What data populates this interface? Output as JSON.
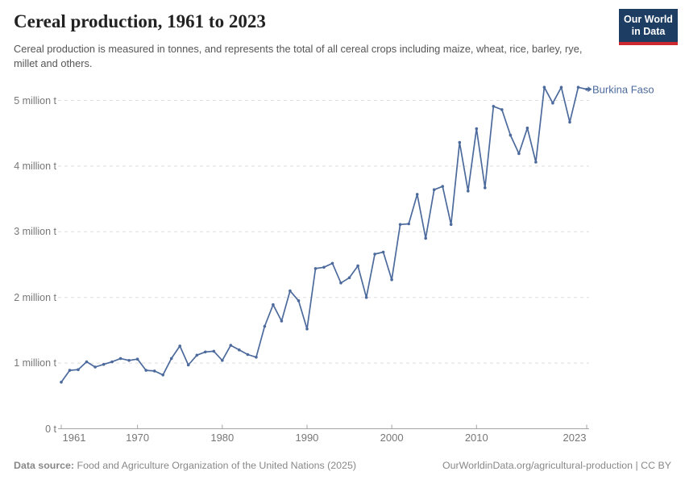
{
  "header": {
    "title": "Cereal production, 1961 to 2023",
    "subtitle": "Cereal production is measured in tonnes, and represents the total of all cereal crops including maize, wheat, rice, barley, rye, millet and others.",
    "logo_line1": "Our World",
    "logo_line2": "in Data"
  },
  "chart_data": {
    "type": "line",
    "title": "Cereal production, 1961 to 2023",
    "entity_label": "Burkina Faso",
    "unit": "million tonnes",
    "x": [
      1961,
      1962,
      1963,
      1964,
      1965,
      1966,
      1967,
      1968,
      1969,
      1970,
      1971,
      1972,
      1973,
      1974,
      1975,
      1976,
      1977,
      1978,
      1979,
      1980,
      1981,
      1982,
      1983,
      1984,
      1985,
      1986,
      1987,
      1988,
      1989,
      1990,
      1991,
      1992,
      1993,
      1994,
      1995,
      1996,
      1997,
      1998,
      1999,
      2000,
      2001,
      2002,
      2003,
      2004,
      2005,
      2006,
      2007,
      2008,
      2009,
      2010,
      2011,
      2012,
      2013,
      2014,
      2015,
      2016,
      2017,
      2018,
      2019,
      2020,
      2021,
      2022,
      2023
    ],
    "series": [
      {
        "name": "Burkina Faso",
        "values": [
          0.71,
          0.89,
          0.9,
          1.02,
          0.94,
          0.98,
          1.02,
          1.07,
          1.04,
          1.06,
          0.89,
          0.88,
          0.82,
          1.07,
          1.26,
          0.97,
          1.12,
          1.17,
          1.18,
          1.04,
          1.27,
          1.2,
          1.13,
          1.09,
          1.56,
          1.89,
          1.64,
          2.1,
          1.95,
          1.52,
          2.44,
          2.46,
          2.52,
          2.22,
          2.3,
          2.48,
          2.0,
          2.66,
          2.69,
          2.27,
          3.11,
          3.12,
          3.57,
          2.9,
          3.64,
          3.69,
          3.11,
          4.36,
          3.62,
          4.57,
          3.67,
          4.91,
          4.86,
          4.47,
          4.19,
          4.58,
          4.06,
          5.2,
          4.96,
          5.2,
          4.67,
          5.2,
          5.17
        ]
      }
    ],
    "xlim": [
      1961,
      2023
    ],
    "ylim": [
      0,
      5.2
    ],
    "xticks": {
      "values": [
        1961,
        1970,
        1980,
        1990,
        2000,
        2010,
        2023
      ],
      "labels": [
        "1961",
        "1970",
        "1980",
        "1990",
        "2000",
        "2010",
        "2023"
      ]
    },
    "yticks": {
      "values": [
        0,
        1,
        2,
        3,
        4,
        5
      ],
      "labels": [
        "0 t",
        "1 million t",
        "2 million t",
        "3 million t",
        "4 million t",
        "5 million t"
      ]
    },
    "grid": "horizontal-dashed",
    "legend_position": "line-end-label",
    "line_color": "#4C6A9C"
  },
  "colors": {
    "line": "#4C6A9C",
    "entity_label": "#4C6A9C",
    "grid": "#dddddd",
    "axis": "#a5a5a5",
    "tick_label": "#777777",
    "logo_bg": "#1d3d63",
    "logo_stripe": "#cc2a30"
  },
  "footer": {
    "source_label": "Data source:",
    "source_text": " Food and Agriculture Organization of the United Nations (2025)",
    "link": "OurWorldinData.org/agricultural-production",
    "separator": " | ",
    "license": "CC BY"
  }
}
